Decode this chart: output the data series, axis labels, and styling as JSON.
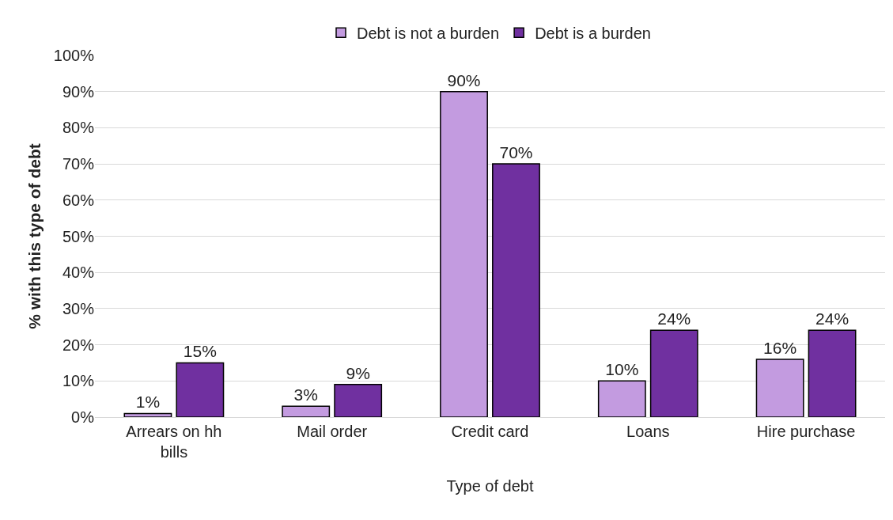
{
  "chart_data": {
    "type": "bar",
    "xlabel": "Type of debt",
    "ylabel": "% with this type of debt",
    "categories": [
      "Arrears on hh bills",
      "Mail order",
      "Credit card",
      "Loans",
      "Hire purchase"
    ],
    "series": [
      {
        "name": "Debt is not a burden",
        "color": "#c39be0",
        "values": [
          1,
          3,
          90,
          10,
          16
        ],
        "value_labels": [
          "1%",
          "3%",
          "90%",
          "10%",
          "16%"
        ]
      },
      {
        "name": "Debt is a burden",
        "color": "#7030a0",
        "values": [
          15,
          9,
          70,
          24,
          24
        ],
        "value_labels": [
          "15%",
          "9%",
          "70%",
          "24%",
          "24%"
        ]
      }
    ],
    "ylim": [
      0,
      100
    ],
    "yticks": [
      {
        "value": 0,
        "label": "0%"
      },
      {
        "value": 10,
        "label": "10%"
      },
      {
        "value": 20,
        "label": "20%"
      },
      {
        "value": 30,
        "label": "30%"
      },
      {
        "value": 40,
        "label": "40%"
      },
      {
        "value": 50,
        "label": "50%"
      },
      {
        "value": 60,
        "label": "60%"
      },
      {
        "value": 70,
        "label": "70%"
      },
      {
        "value": 80,
        "label": "80%"
      },
      {
        "value": 90,
        "label": "90%"
      },
      {
        "value": 100,
        "label": "100%"
      }
    ],
    "grid": "y",
    "legend": "top"
  }
}
